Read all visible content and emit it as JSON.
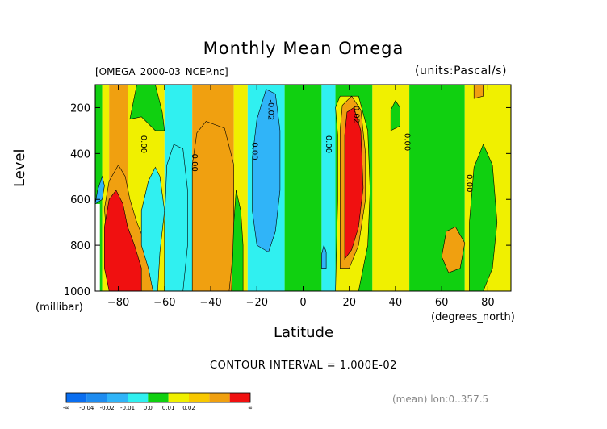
{
  "header": {
    "title": "Monthly Mean Omega",
    "file": "[OMEGA_2000-03_NCEP.nc]",
    "units": "(units:Pascal/s)"
  },
  "footer": {
    "contour_interval": "CONTOUR INTERVAL = 1.000E-02",
    "mean_lon": "(mean) lon:0..357.5"
  },
  "chart_data": {
    "type": "heatmap",
    "title": "Monthly Mean Omega",
    "xlabel": "Latitude",
    "xunit": "(degrees_north)",
    "ylabel": "Level",
    "yunit": "(millibar)",
    "xlim": [
      -90,
      90
    ],
    "ylim": [
      1000,
      100
    ],
    "x_ticks": [
      -80,
      -60,
      -40,
      -20,
      0,
      20,
      40,
      60,
      80
    ],
    "x_tick_labels": [
      "−80",
      "−60",
      "−40",
      "−20",
      "0",
      "20",
      "40",
      "60",
      "80"
    ],
    "y_ticks": [
      200,
      400,
      600,
      800,
      1000
    ],
    "y_tick_labels": [
      "200",
      "400",
      "600",
      "800",
      "1000"
    ],
    "contour_labels": [
      {
        "text": "0.00",
        "lat": -70,
        "level": 360
      },
      {
        "text": "0.00",
        "lat": -48,
        "level": 440
      },
      {
        "text": "0.00",
        "lat": -22,
        "level": 390
      },
      {
        "text": "-0.02",
        "lat": -15,
        "level": 210
      },
      {
        "text": "0.00",
        "lat": 10,
        "level": 360
      },
      {
        "text": "0.02",
        "lat": 22,
        "level": 230
      },
      {
        "text": "0.00",
        "lat": 44,
        "level": 350
      },
      {
        "text": "0.00",
        "lat": 71,
        "level": 530
      }
    ],
    "legend": {
      "colors": [
        "#0a6ef0",
        "#1e8cf0",
        "#30b4f8",
        "#30f0f0",
        "#10d010",
        "#f0f000",
        "#f8c800",
        "#f0a010",
        "#f01010"
      ],
      "tick_labels": [
        "-∞",
        "-0.04",
        "-0.02",
        "-0.01",
        "0.0",
        "0.01",
        "0.02",
        "∞"
      ],
      "position": "bottom-left"
    },
    "bands": [
      {
        "lat": [
          -90,
          -87
        ],
        "level": [
          100,
          1000
        ],
        "color": "#10d010"
      },
      {
        "lat": [
          -87,
          -84
        ],
        "level": [
          100,
          1000
        ],
        "color": "#f0f000"
      },
      {
        "lat": [
          -84,
          -76
        ],
        "level": [
          100,
          1000
        ],
        "color": "#f0a010"
      },
      {
        "lat": [
          -76,
          -60
        ],
        "level": [
          100,
          1000
        ],
        "color": "#f0f000"
      },
      {
        "lat": [
          -60,
          -48
        ],
        "level": [
          100,
          1000
        ],
        "color": "#30f0f0"
      },
      {
        "lat": [
          -48,
          -30
        ],
        "level": [
          100,
          1000
        ],
        "color": "#f0a010"
      },
      {
        "lat": [
          -30,
          -24
        ],
        "level": [
          100,
          1000
        ],
        "color": "#f0f000"
      },
      {
        "lat": [
          -24,
          -8
        ],
        "level": [
          100,
          1000
        ],
        "color": "#30f0f0"
      },
      {
        "lat": [
          -8,
          8
        ],
        "level": [
          100,
          1000
        ],
        "color": "#10d010"
      },
      {
        "lat": [
          8,
          14
        ],
        "level": [
          100,
          1000
        ],
        "color": "#30f0f0"
      },
      {
        "lat": [
          14,
          30
        ],
        "level": [
          100,
          1000
        ],
        "color": "#10d010"
      },
      {
        "lat": [
          30,
          46
        ],
        "level": [
          100,
          1000
        ],
        "color": "#f0f000"
      },
      {
        "lat": [
          46,
          70
        ],
        "level": [
          100,
          1000
        ],
        "color": "#10d010"
      },
      {
        "lat": [
          70,
          90
        ],
        "level": [
          100,
          1000
        ],
        "color": "#f0f000"
      }
    ],
    "patches": [
      {
        "color": "#f0a010",
        "points": [
          [
            -80,
            1000
          ],
          [
            -84,
            900
          ],
          [
            -86,
            640
          ],
          [
            -84,
            520
          ],
          [
            -80,
            450
          ],
          [
            -77,
            500
          ],
          [
            -75,
            600
          ],
          [
            -72,
            700
          ],
          [
            -68,
            800
          ],
          [
            -66,
            900
          ],
          [
            -64,
            1000
          ]
        ]
      },
      {
        "color": "#f01010",
        "points": [
          [
            -84,
            1000
          ],
          [
            -86,
            900
          ],
          [
            -86,
            720
          ],
          [
            -84,
            600
          ],
          [
            -81,
            560
          ],
          [
            -78,
            620
          ],
          [
            -76,
            720
          ],
          [
            -73,
            800
          ],
          [
            -70,
            900
          ],
          [
            -70,
            1000
          ]
        ]
      },
      {
        "color": "#30b4f8",
        "points": [
          [
            -90,
            620
          ],
          [
            -89,
            560
          ],
          [
            -87,
            500
          ],
          [
            -86,
            540
          ],
          [
            -87,
            600
          ]
        ]
      },
      {
        "color": "#30f0f0",
        "points": [
          [
            -63,
            1000
          ],
          [
            -62,
            830
          ],
          [
            -60,
            650
          ],
          [
            -62,
            500
          ],
          [
            -64,
            460
          ],
          [
            -67,
            520
          ],
          [
            -70,
            650
          ],
          [
            -70,
            800
          ],
          [
            -67,
            900
          ],
          [
            -65,
            1000
          ]
        ]
      },
      {
        "color": "#10d010",
        "points": [
          [
            -75,
            250
          ],
          [
            -72,
            100
          ],
          [
            -64,
            100
          ],
          [
            -61,
            220
          ],
          [
            -60,
            300
          ],
          [
            -64,
            300
          ],
          [
            -70,
            240
          ]
        ]
      },
      {
        "color": "#30f0f0",
        "points": [
          [
            -60,
            1000
          ],
          [
            -60,
            700
          ],
          [
            -59,
            450
          ],
          [
            -56,
            360
          ],
          [
            -52,
            380
          ],
          [
            -50,
            560
          ],
          [
            -50,
            800
          ],
          [
            -52,
            1000
          ]
        ]
      },
      {
        "color": "#f0a010",
        "points": [
          [
            -48,
            1000
          ],
          [
            -48,
            450
          ],
          [
            -46,
            310
          ],
          [
            -42,
            260
          ],
          [
            -34,
            290
          ],
          [
            -30,
            450
          ],
          [
            -30,
            800
          ],
          [
            -32,
            1000
          ]
        ]
      },
      {
        "color": "#10d010",
        "points": [
          [
            -31,
            1000
          ],
          [
            -30,
            700
          ],
          [
            -29,
            560
          ],
          [
            -27,
            650
          ],
          [
            -26,
            800
          ],
          [
            -26,
            1000
          ]
        ]
      },
      {
        "color": "#30b4f8",
        "points": [
          [
            -20,
            800
          ],
          [
            -22,
            650
          ],
          [
            -22,
            420
          ],
          [
            -20,
            250
          ],
          [
            -16,
            120
          ],
          [
            -12,
            140
          ],
          [
            -10,
            300
          ],
          [
            -10,
            560
          ],
          [
            -12,
            740
          ],
          [
            -15,
            830
          ]
        ]
      },
      {
        "color": "#30b4f8",
        "points": [
          [
            8,
            900
          ],
          [
            8,
            840
          ],
          [
            9,
            800
          ],
          [
            10,
            830
          ],
          [
            10,
            900
          ]
        ]
      },
      {
        "color": "#f0f000",
        "points": [
          [
            14,
            1000
          ],
          [
            15,
            600
          ],
          [
            15,
            320
          ],
          [
            14,
            200
          ],
          [
            16,
            150
          ],
          [
            24,
            150
          ],
          [
            28,
            300
          ],
          [
            29,
            560
          ],
          [
            28,
            800
          ],
          [
            24,
            1000
          ]
        ]
      },
      {
        "color": "#f0a010",
        "points": [
          [
            16,
            900
          ],
          [
            16,
            600
          ],
          [
            16,
            300
          ],
          [
            17,
            190
          ],
          [
            21,
            150
          ],
          [
            25,
            210
          ],
          [
            27,
            400
          ],
          [
            27,
            600
          ],
          [
            24,
            800
          ],
          [
            20,
            900
          ]
        ]
      },
      {
        "color": "#f01010",
        "points": [
          [
            18,
            860
          ],
          [
            18,
            600
          ],
          [
            18,
            320
          ],
          [
            19,
            220
          ],
          [
            22,
            200
          ],
          [
            25,
            300
          ],
          [
            26,
            550
          ],
          [
            24,
            720
          ],
          [
            21,
            820
          ]
        ]
      },
      {
        "color": "#10d010",
        "points": [
          [
            38,
            300
          ],
          [
            38,
            210
          ],
          [
            40,
            170
          ],
          [
            42,
            200
          ],
          [
            42,
            280
          ]
        ]
      },
      {
        "color": "#f0a010",
        "points": [
          [
            60,
            850
          ],
          [
            62,
            740
          ],
          [
            66,
            720
          ],
          [
            70,
            790
          ],
          [
            68,
            900
          ],
          [
            63,
            920
          ]
        ]
      },
      {
        "color": "#10d010",
        "points": [
          [
            72,
            1000
          ],
          [
            72,
            700
          ],
          [
            74,
            460
          ],
          [
            78,
            360
          ],
          [
            82,
            450
          ],
          [
            84,
            700
          ],
          [
            82,
            900
          ],
          [
            78,
            1000
          ]
        ]
      },
      {
        "color": "#f0a010",
        "points": [
          [
            74,
            160
          ],
          [
            74,
            100
          ],
          [
            78,
            100
          ],
          [
            78,
            150
          ]
        ]
      }
    ],
    "missing": {
      "lat": [
        -90,
        -88
      ],
      "level": [
        620,
        1000
      ],
      "color": "#ffffff"
    }
  }
}
